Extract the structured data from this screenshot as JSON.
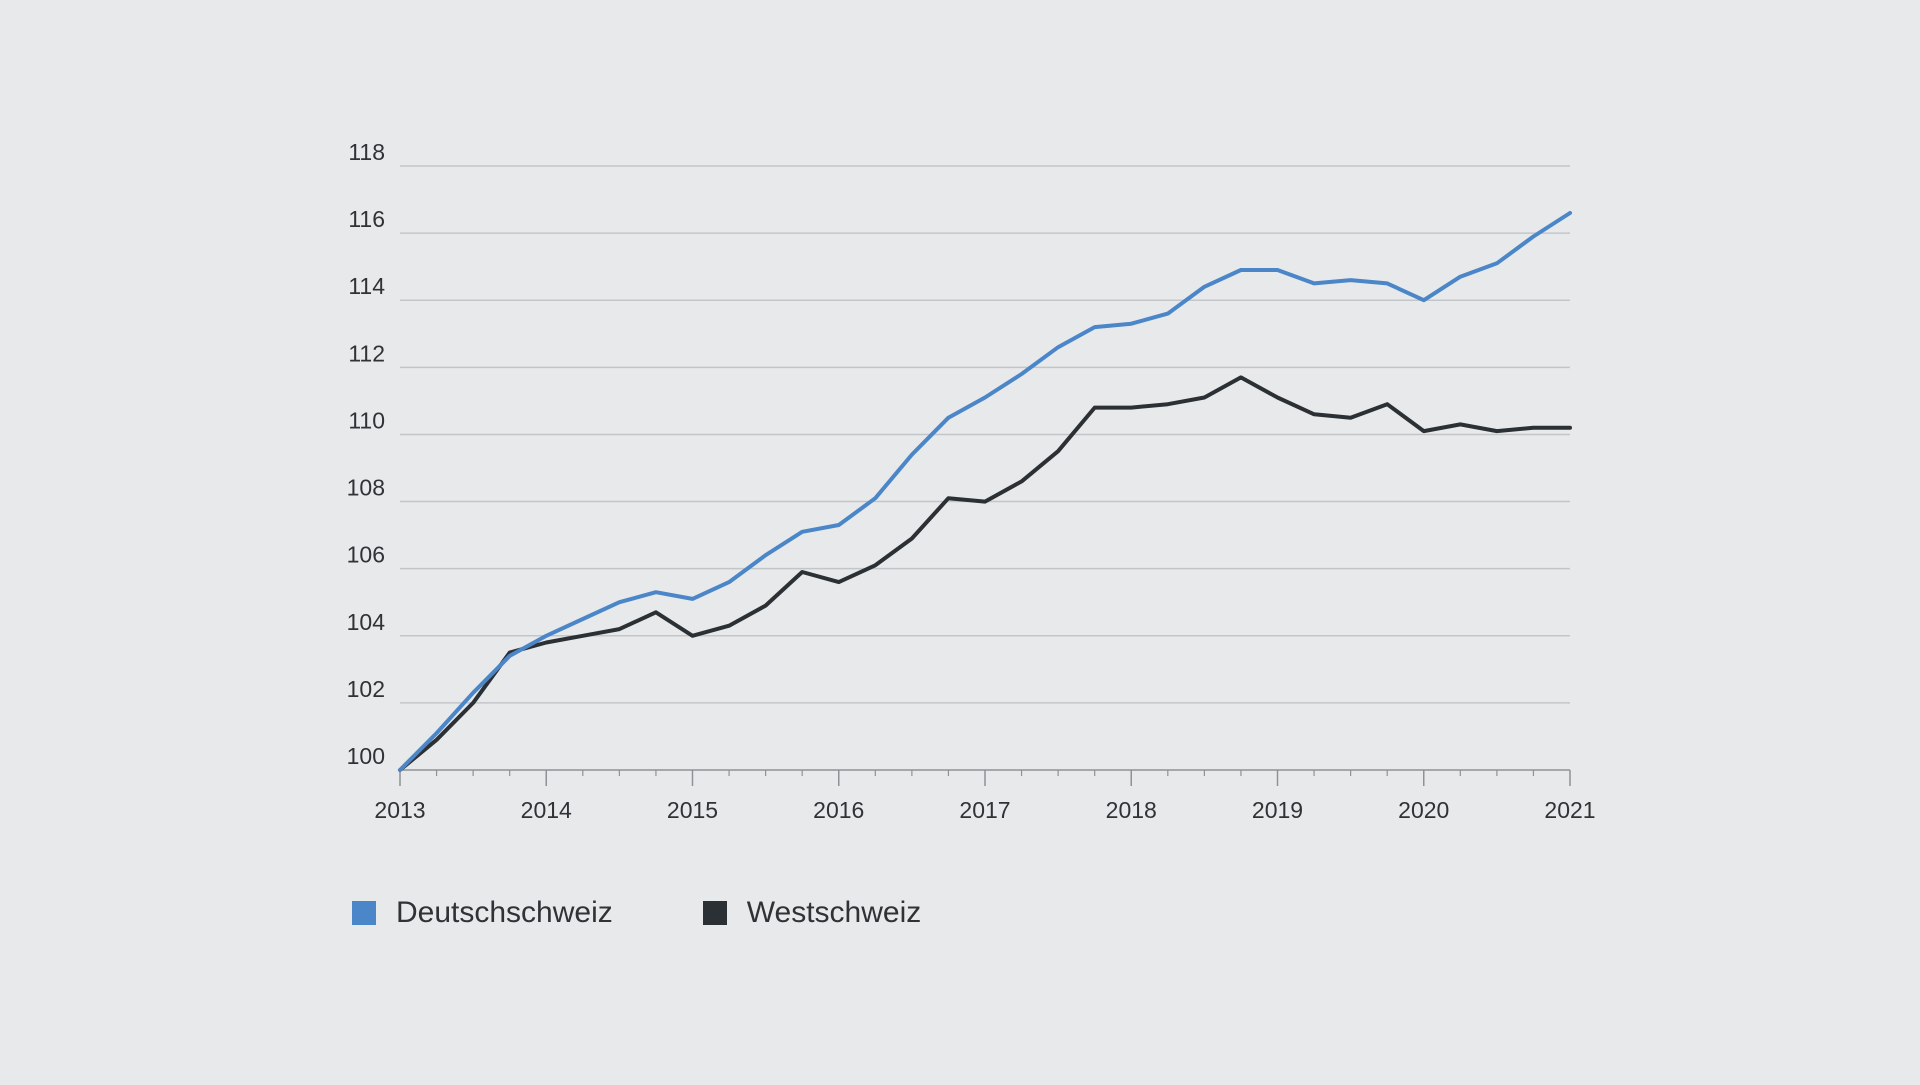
{
  "chart_data": {
    "type": "line",
    "title": "",
    "xlabel": "",
    "ylabel": "",
    "x_ticks": [
      "2013",
      "2014",
      "2015",
      "2016",
      "2017",
      "2018",
      "2019",
      "2020",
      "2021"
    ],
    "y_ticks": [
      "100",
      "102",
      "104",
      "106",
      "108",
      "110",
      "112",
      "114",
      "116",
      "118"
    ],
    "xlim": [
      2013,
      2021
    ],
    "ylim": [
      100,
      118
    ],
    "grid": true,
    "legend_position": "bottom-left",
    "x": [
      2013,
      2013.25,
      2013.5,
      2013.75,
      2014,
      2014.25,
      2014.5,
      2014.75,
      2015,
      2015.25,
      2015.5,
      2015.75,
      2016,
      2016.25,
      2016.5,
      2016.75,
      2017,
      2017.25,
      2017.5,
      2017.75,
      2018,
      2018.25,
      2018.5,
      2018.75,
      2019,
      2019.25,
      2019.5,
      2019.75,
      2020,
      2020.25,
      2020.5,
      2020.75,
      2021
    ],
    "series": [
      {
        "name": "Deutschschweiz",
        "color": "#4a86c8",
        "values": [
          100,
          101.1,
          102.3,
          103.4,
          104.0,
          104.5,
          105.0,
          105.3,
          105.1,
          105.6,
          106.4,
          107.1,
          107.3,
          108.1,
          109.4,
          110.5,
          111.1,
          111.8,
          112.6,
          113.2,
          113.3,
          113.6,
          114.4,
          114.9,
          114.9,
          114.5,
          114.6,
          114.5,
          114.0,
          114.7,
          115.1,
          115.9,
          116.6
        ]
      },
      {
        "name": "Westschweiz",
        "color": "#2b3034",
        "values": [
          100,
          100.9,
          102.0,
          103.5,
          103.8,
          104.0,
          104.2,
          104.7,
          104.0,
          104.3,
          104.9,
          105.9,
          105.6,
          106.1,
          106.9,
          108.1,
          108.0,
          108.6,
          109.5,
          110.8,
          110.8,
          110.9,
          111.1,
          111.7,
          111.1,
          110.6,
          110.5,
          110.9,
          110.1,
          110.3,
          110.1,
          110.2,
          110.2
        ]
      }
    ]
  },
  "legend": {
    "items": [
      {
        "label": "Deutschschweiz",
        "color": "#4a86c8"
      },
      {
        "label": "Westschweiz",
        "color": "#2b3034"
      }
    ]
  },
  "colors": {
    "background": "#e8e9eb",
    "grid": "#c3c6c9",
    "axis": "#8e9296",
    "text": "#2f3336"
  }
}
